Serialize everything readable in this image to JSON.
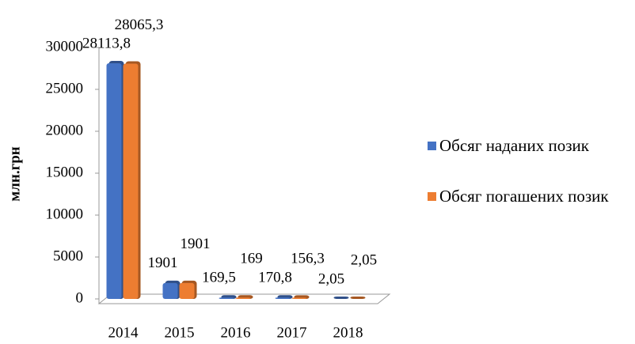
{
  "chart_data": {
    "type": "bar",
    "y_label": "млн.грн",
    "categories": [
      "2014",
      "2015",
      "2016",
      "2017",
      "2018"
    ],
    "series": [
      {
        "name": "Обсяг наданих позик",
        "color": "#4472c4",
        "values": [
          28113.8,
          1901,
          169.5,
          170.8,
          2.05
        ],
        "value_labels": [
          "28113,8",
          "1901",
          "169,5",
          "170,8",
          "2,05"
        ]
      },
      {
        "name": "Обсяг погашених позик",
        "color": "#ed7d31",
        "values": [
          28065.3,
          1901,
          169,
          156.3,
          2.05
        ],
        "value_labels": [
          "28065,3",
          "1901",
          "169",
          "156,3",
          "2,05"
        ]
      }
    ],
    "ylim": [
      0,
      30000
    ],
    "yticks": [
      0,
      5000,
      10000,
      15000,
      20000,
      25000,
      30000
    ],
    "grid": false,
    "legend": "right"
  }
}
